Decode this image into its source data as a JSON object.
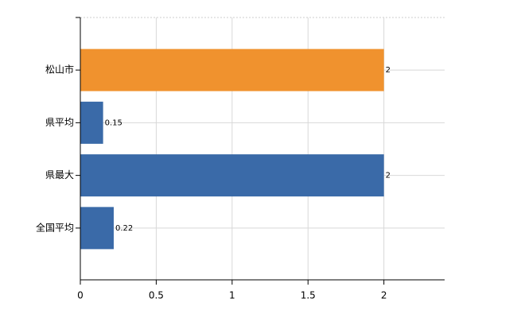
{
  "chart_data": {
    "type": "bar",
    "orientation": "horizontal",
    "categories": [
      "松山市",
      "県平均",
      "県最大",
      "全国平均"
    ],
    "values": [
      2,
      0.15,
      2,
      0.22
    ],
    "colors": [
      "#f0922e",
      "#3a6aa8",
      "#3a6aa8",
      "#3a6aa8"
    ],
    "xlim": [
      0,
      2.4
    ],
    "xticks": [
      0,
      0.5,
      1,
      1.5,
      2
    ],
    "grid": true
  }
}
